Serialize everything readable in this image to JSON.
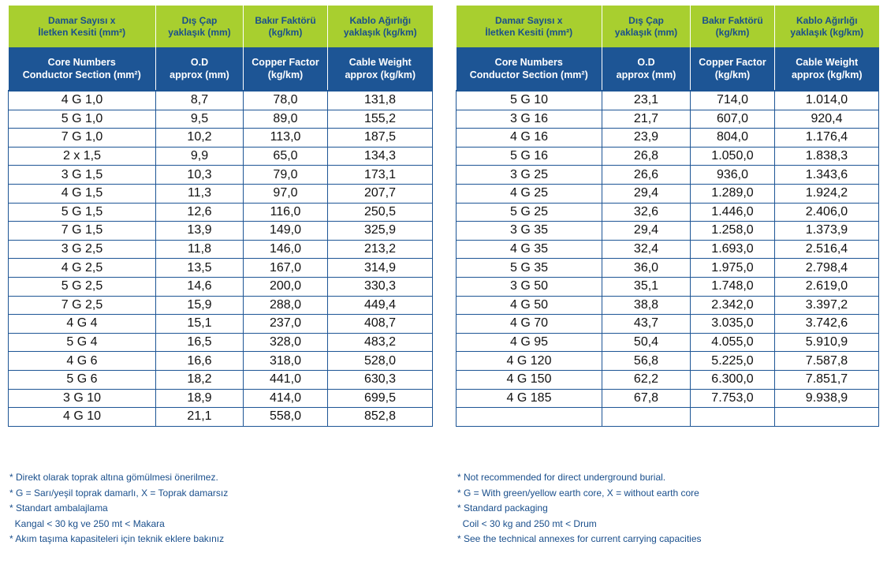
{
  "header": {
    "tr": [
      "Damar Sayısı x\nİletken Kesiti (mm²)",
      "Dış Çap\nyaklaşık (mm)",
      "Bakır Faktörü\n(kg/km)",
      "Kablo Ağırlığı\nyaklaşık (kg/km)"
    ],
    "en": [
      "Core Numbers\nConductor Section (mm²)",
      "O.D\napprox (mm)",
      "Copper Factor\n(kg/km)",
      "Cable Weight\napprox (kg/km)"
    ]
  },
  "left_rows": [
    [
      "4 G 1,0",
      "8,7",
      "78,0",
      "131,8"
    ],
    [
      "5 G 1,0",
      "9,5",
      "89,0",
      "155,2"
    ],
    [
      "7 G 1,0",
      "10,2",
      "113,0",
      "187,5"
    ],
    [
      "2 x 1,5",
      "9,9",
      "65,0",
      "134,3"
    ],
    [
      "3 G 1,5",
      "10,3",
      "79,0",
      "173,1"
    ],
    [
      "4 G 1,5",
      "11,3",
      "97,0",
      "207,7"
    ],
    [
      "5 G 1,5",
      "12,6",
      "116,0",
      "250,5"
    ],
    [
      "7 G 1,5",
      "13,9",
      "149,0",
      "325,9"
    ],
    [
      "3 G 2,5",
      "11,8",
      "146,0",
      "213,2"
    ],
    [
      "4 G 2,5",
      "13,5",
      "167,0",
      "314,9"
    ],
    [
      "5 G 2,5",
      "14,6",
      "200,0",
      "330,3"
    ],
    [
      "7 G 2,5",
      "15,9",
      "288,0",
      "449,4"
    ],
    [
      "4 G 4",
      "15,1",
      "237,0",
      "408,7"
    ],
    [
      "5 G 4",
      "16,5",
      "328,0",
      "483,2"
    ],
    [
      "4 G 6",
      "16,6",
      "318,0",
      "528,0"
    ],
    [
      "5 G 6",
      "18,2",
      "441,0",
      "630,3"
    ],
    [
      "3 G 10",
      "18,9",
      "414,0",
      "699,5"
    ],
    [
      "4 G 10",
      "21,1",
      "558,0",
      "852,8"
    ]
  ],
  "right_rows": [
    [
      "5 G 10",
      "23,1",
      "714,0",
      "1.014,0"
    ],
    [
      "3 G 16",
      "21,7",
      "607,0",
      "920,4"
    ],
    [
      "4 G 16",
      "23,9",
      "804,0",
      "1.176,4"
    ],
    [
      "5 G 16",
      "26,8",
      "1.050,0",
      "1.838,3"
    ],
    [
      "3 G 25",
      "26,6",
      "936,0",
      "1.343,6"
    ],
    [
      "4 G 25",
      "29,4",
      "1.289,0",
      "1.924,2"
    ],
    [
      "5 G 25",
      "32,6",
      "1.446,0",
      "2.406,0"
    ],
    [
      "3 G 35",
      "29,4",
      "1.258,0",
      "1.373,9"
    ],
    [
      "4 G 35",
      "32,4",
      "1.693,0",
      "2.516,4"
    ],
    [
      "5 G 35",
      "36,0",
      "1.975,0",
      "2.798,4"
    ],
    [
      "3 G 50",
      "35,1",
      "1.748,0",
      "2.619,0"
    ],
    [
      "4 G 50",
      "38,8",
      "2.342,0",
      "3.397,2"
    ],
    [
      "4 G 70",
      "43,7",
      "3.035,0",
      "3.742,6"
    ],
    [
      "4 G 95",
      "50,4",
      "4.055,0",
      "5.910,9"
    ],
    [
      "4 G 120",
      "56,8",
      "5.225,0",
      "7.587,8"
    ],
    [
      "4 G 150",
      "62,2",
      "6.300,0",
      "7.851,7"
    ],
    [
      "4 G 185",
      "67,8",
      "7.753,0",
      "9.938,9"
    ],
    [
      "",
      "",
      "",
      ""
    ]
  ],
  "notes_tr": [
    "* Direkt olarak toprak altına gömülmesi önerilmez.",
    "* G = Sarı/yeşil toprak damarlı, X = Toprak damarsız",
    "* Standart ambalajlama",
    "  Kangal < 30 kg ve 250 mt < Makara",
    "* Akım taşıma kapasiteleri için teknik eklere bakınız"
  ],
  "notes_en": [
    "* Not recommended for direct underground burial.",
    "* G = With green/yellow earth core, X = without earth core",
    "* Standard packaging",
    "  Coil < 30 kg and 250 mt < Drum",
    "* See the technical annexes for current carrying capacities"
  ],
  "colors": {
    "green_header": "#a8cf2f",
    "blue_header": "#1d5595",
    "header_text": "#1a4f8c",
    "border": "#1d5595"
  }
}
